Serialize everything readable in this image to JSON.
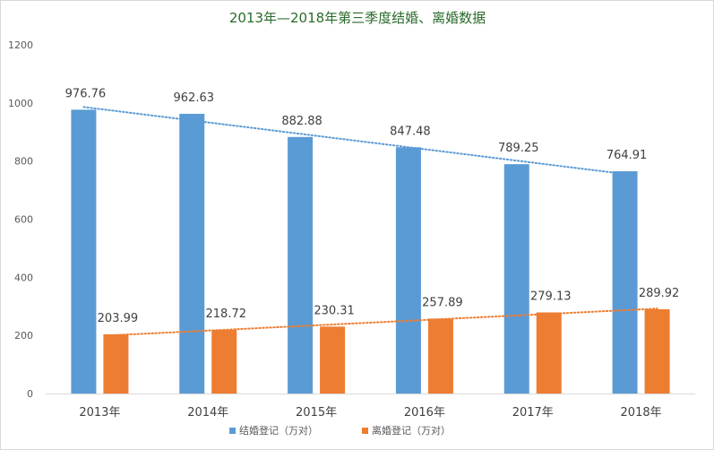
{
  "chart_data": {
    "type": "bar",
    "title": "2013年—2018年第三季度结婚、离婚数据",
    "categories": [
      "2013年",
      "2014年",
      "2015年",
      "2016年",
      "2017年",
      "2018年"
    ],
    "series": [
      {
        "name": "结婚登记（万对）",
        "color": "#5b9bd5",
        "values": [
          976.76,
          962.63,
          882.88,
          847.48,
          789.25,
          764.91
        ]
      },
      {
        "name": "离婚登记（万对）",
        "color": "#ed7d31",
        "values": [
          203.99,
          218.72,
          230.31,
          257.89,
          279.13,
          289.92
        ]
      }
    ],
    "trendlines": [
      {
        "series": "结婚登记（万对）",
        "type": "linear",
        "style": "dotted"
      },
      {
        "series": "离婚登记（万对）",
        "type": "linear",
        "style": "dotted"
      }
    ],
    "ylim": [
      0,
      1200
    ],
    "yticks": [
      0,
      200,
      400,
      600,
      800,
      1000,
      1200
    ],
    "grid": false,
    "legend_position": "bottom",
    "xlabel": "",
    "ylabel": ""
  }
}
